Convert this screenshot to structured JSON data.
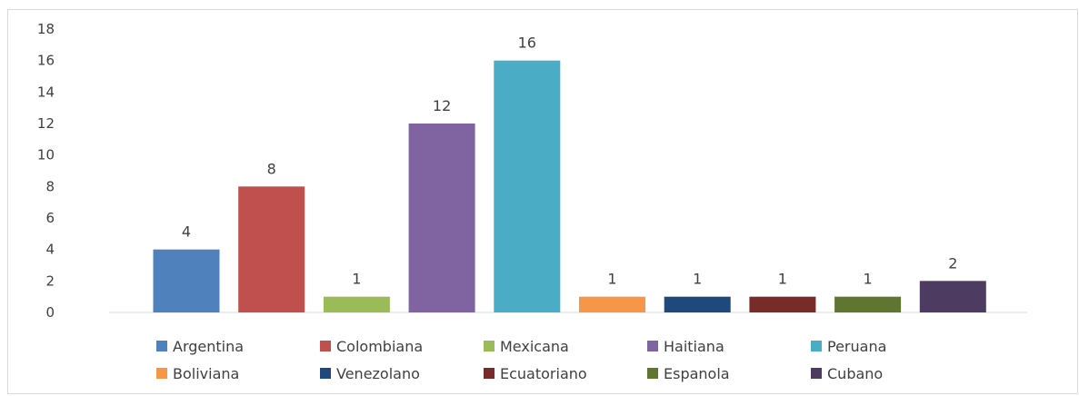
{
  "chart_data": {
    "type": "bar",
    "title": "",
    "xlabel": "",
    "ylabel": "",
    "ylim": [
      0,
      18
    ],
    "yticks": [
      0,
      2,
      4,
      6,
      8,
      10,
      12,
      14,
      16,
      18
    ],
    "grid": false,
    "legend_position": "bottom",
    "categories": [
      "Argentina",
      "Colombiana",
      "Mexicana",
      "Haitiana",
      "Peruana",
      "Boliviana",
      "Venezolano",
      "Ecuatoriano",
      "Espanola",
      "Cubano"
    ],
    "values": [
      4,
      8,
      1,
      12,
      16,
      1,
      1,
      1,
      1,
      2
    ],
    "data_labels": [
      "4",
      "8",
      "1",
      "12",
      "16",
      "1",
      "1",
      "1",
      "1",
      "2"
    ],
    "colors": [
      "#4f81bd",
      "#c0504d",
      "#9bbb59",
      "#8064a2",
      "#4bacc6",
      "#f79646",
      "#1f497d",
      "#772c2a",
      "#5f7530",
      "#4d3b62"
    ]
  }
}
